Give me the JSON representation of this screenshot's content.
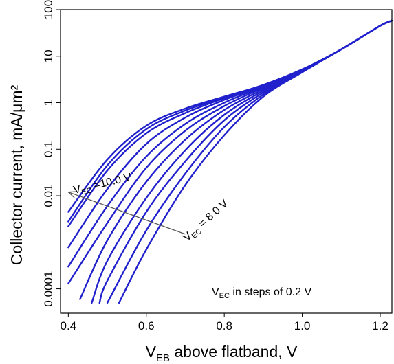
{
  "chart_data": {
    "type": "line",
    "title": "",
    "xlabel_main": "V",
    "xlabel_sub": "EB",
    "xlabel_rest": " above flatband, V",
    "ylabel": "Collector current, mA/μm²",
    "xlim": [
      0.38,
      1.23
    ],
    "ylim": [
      3e-05,
      100
    ],
    "y_scale": "log",
    "x_ticks": [
      {
        "value": 0.4,
        "label": "0.4"
      },
      {
        "value": 0.6,
        "label": "0.6"
      },
      {
        "value": 0.8,
        "label": "0.8"
      },
      {
        "value": 1.0,
        "label": "1.0"
      },
      {
        "value": 1.2,
        "label": "1.2"
      }
    ],
    "y_ticks": [
      {
        "value": 100,
        "label": "100"
      },
      {
        "value": 10,
        "label": "10"
      },
      {
        "value": 1,
        "label": "1"
      },
      {
        "value": 0.1,
        "label": "0.1"
      },
      {
        "value": 0.01,
        "label": "0.01"
      },
      {
        "value": 0.0001,
        "label": "0.0001"
      }
    ],
    "line_color": "#2020cc",
    "series": [
      {
        "values": [
          [
            0.4,
            0.0045
          ],
          [
            0.5,
            0.06
          ],
          [
            0.6,
            0.32
          ],
          [
            0.7,
            0.75
          ],
          [
            0.8,
            1.35
          ],
          [
            0.9,
            2.4
          ],
          [
            1.0,
            5.2
          ],
          [
            1.1,
            14
          ],
          [
            1.2,
            45
          ],
          [
            1.23,
            58
          ]
        ]
      },
      {
        "values": [
          [
            0.4,
            0.0028
          ],
          [
            0.5,
            0.045
          ],
          [
            0.6,
            0.27
          ],
          [
            0.7,
            0.68
          ],
          [
            0.8,
            1.3
          ],
          [
            0.9,
            2.4
          ],
          [
            1.0,
            5.2
          ],
          [
            1.1,
            14
          ],
          [
            1.2,
            45
          ],
          [
            1.23,
            58
          ]
        ]
      },
      {
        "values": [
          [
            0.4,
            0.0022
          ],
          [
            0.5,
            0.035
          ],
          [
            0.6,
            0.22
          ],
          [
            0.7,
            0.6
          ],
          [
            0.8,
            1.25
          ],
          [
            0.9,
            2.35
          ],
          [
            1.0,
            5.1
          ],
          [
            1.1,
            14
          ],
          [
            1.2,
            45
          ],
          [
            1.23,
            58
          ]
        ]
      },
      {
        "values": [
          [
            0.4,
            0.00078
          ],
          [
            0.5,
            0.014
          ],
          [
            0.6,
            0.13
          ],
          [
            0.7,
            0.48
          ],
          [
            0.8,
            1.15
          ],
          [
            0.9,
            2.3
          ],
          [
            1.0,
            5.1
          ],
          [
            1.1,
            14
          ],
          [
            1.2,
            45
          ],
          [
            1.23,
            58
          ]
        ]
      },
      {
        "values": [
          [
            0.4,
            0.0003
          ],
          [
            0.5,
            0.006
          ],
          [
            0.6,
            0.07
          ],
          [
            0.7,
            0.35
          ],
          [
            0.8,
            1.0
          ],
          [
            0.9,
            2.2
          ],
          [
            1.0,
            5.0
          ],
          [
            1.1,
            14
          ],
          [
            1.2,
            45
          ],
          [
            1.23,
            58
          ]
        ]
      },
      {
        "values": [
          [
            0.4,
            0.00013
          ],
          [
            0.5,
            0.0026
          ],
          [
            0.6,
            0.04
          ],
          [
            0.7,
            0.25
          ],
          [
            0.8,
            0.85
          ],
          [
            0.9,
            2.1
          ],
          [
            1.0,
            5.0
          ],
          [
            1.1,
            14
          ],
          [
            1.2,
            45
          ],
          [
            1.23,
            58
          ]
        ]
      },
      {
        "values": [
          [
            0.43,
            6e-05
          ],
          [
            0.5,
            0.0011
          ],
          [
            0.6,
            0.02
          ],
          [
            0.7,
            0.16
          ],
          [
            0.8,
            0.7
          ],
          [
            0.9,
            1.95
          ],
          [
            1.0,
            4.9
          ],
          [
            1.1,
            14
          ],
          [
            1.2,
            45
          ],
          [
            1.23,
            58
          ]
        ]
      },
      {
        "values": [
          [
            0.46,
            5e-05
          ],
          [
            0.5,
            0.0004
          ],
          [
            0.6,
            0.009
          ],
          [
            0.7,
            0.095
          ],
          [
            0.8,
            0.55
          ],
          [
            0.9,
            1.8
          ],
          [
            1.0,
            4.8
          ],
          [
            1.1,
            14
          ],
          [
            1.2,
            45
          ],
          [
            1.23,
            58
          ]
        ]
      },
      {
        "values": [
          [
            0.48,
            5e-05
          ],
          [
            0.5,
            0.00015
          ],
          [
            0.6,
            0.0045
          ],
          [
            0.7,
            0.055
          ],
          [
            0.8,
            0.42
          ],
          [
            0.9,
            1.65
          ],
          [
            1.0,
            4.7
          ],
          [
            1.1,
            14
          ],
          [
            1.2,
            45
          ],
          [
            1.23,
            58
          ]
        ]
      },
      {
        "values": [
          [
            0.5,
            5e-05
          ],
          [
            0.6,
            0.0018
          ],
          [
            0.7,
            0.03
          ],
          [
            0.8,
            0.3
          ],
          [
            0.9,
            1.5
          ],
          [
            1.0,
            4.6
          ],
          [
            1.1,
            14
          ],
          [
            1.2,
            45
          ],
          [
            1.23,
            58
          ]
        ]
      },
      {
        "values": [
          [
            0.53,
            5e-05
          ],
          [
            0.6,
            0.0007
          ],
          [
            0.7,
            0.017
          ],
          [
            0.8,
            0.2
          ],
          [
            0.9,
            1.35
          ],
          [
            1.0,
            4.5
          ],
          [
            1.1,
            14
          ],
          [
            1.2,
            45
          ],
          [
            1.23,
            58
          ]
        ]
      }
    ],
    "annotations": {
      "vec_high": {
        "main": "V",
        "sub": "EC",
        "rest": " =10.0 V"
      },
      "vec_low": {
        "main": "V",
        "sub": "EC",
        "rest": " = 8.0 V"
      },
      "steps": {
        "main": "V",
        "sub": "EC",
        "rest": " in steps of 0.2 V"
      }
    },
    "arrow": {
      "from": [
        0.7,
        0.0015
      ],
      "to": [
        0.4,
        0.012
      ]
    }
  }
}
